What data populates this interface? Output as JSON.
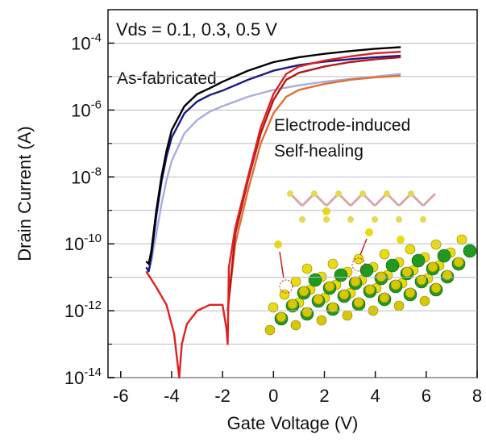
{
  "chart_data": {
    "type": "line",
    "title": "Vds = 0.1, 0.3, 0.5 V",
    "x_label": "Gate Voltage (V)",
    "y_label": "Drain Current (A)",
    "log_y": true,
    "grid": true,
    "xlim": [
      -6.5,
      8
    ],
    "xticks": [
      -6,
      -4,
      -2,
      0,
      2,
      4,
      6,
      8
    ],
    "ylim": [
      1e-14,
      0.001
    ],
    "yticks": [
      {
        "value": 1e-14,
        "label": "10^-14"
      },
      {
        "value": 1e-12,
        "label": "10^-12"
      },
      {
        "value": 1e-10,
        "label": "10^-10"
      },
      {
        "value": 1e-08,
        "label": "10^-8"
      },
      {
        "value": 1e-06,
        "label": "10^-6"
      },
      {
        "value": 0.0001,
        "label": "10^-4"
      }
    ],
    "minor_yticks": [
      1e-13,
      1e-11,
      1e-09,
      1e-07,
      1e-05
    ],
    "annotations": [
      {
        "text": "As-fabricated",
        "color": "#1f1f8f"
      },
      {
        "text": "Electrode-induced",
        "color": "#cc2020"
      },
      {
        "text": "Self-healing",
        "color": "#cc2020"
      }
    ],
    "series": [
      {
        "color": "#a8ace0",
        "x": [
          -5,
          -4.9,
          -4.8,
          -4.6,
          -4.4,
          -4.2,
          -4,
          -3.5,
          -3,
          -2.5,
          -2,
          -1,
          0,
          1,
          2,
          3,
          4,
          5
        ],
        "values": [
          2e-11,
          1.5e-11,
          3e-11,
          2e-10,
          1.5e-09,
          8e-09,
          3e-08,
          2e-07,
          5e-07,
          9e-07,
          1.3e-06,
          2.5e-06,
          4e-06,
          5.5e-06,
          7e-06,
          8.5e-06,
          1e-05,
          1.2e-05
        ]
      },
      {
        "color": "#1a1a80",
        "x": [
          -5,
          -4.9,
          -4.8,
          -4.6,
          -4.4,
          -4.2,
          -4,
          -3.5,
          -3,
          -2.5,
          -2,
          -1,
          0,
          1,
          2,
          3,
          4,
          5
        ],
        "values": [
          2e-11,
          1.5e-11,
          4e-11,
          7e-10,
          7e-09,
          4e-08,
          1.5e-07,
          8e-07,
          1.8e-06,
          2.8e-06,
          3.8e-06,
          8e-06,
          1.5e-05,
          2.2e-05,
          2.8e-05,
          3.3e-05,
          3.8e-05,
          4.2e-05
        ]
      },
      {
        "color": "#000000",
        "x": [
          -5,
          -4.9,
          -4.8,
          -4.6,
          -4.4,
          -4.2,
          -4,
          -3.5,
          -3,
          -2.5,
          -2,
          -1,
          0,
          1,
          2,
          3,
          4,
          5
        ],
        "values": [
          3e-11,
          2.5e-11,
          6e-11,
          1e-09,
          1e-08,
          6e-08,
          2.5e-07,
          1.3e-06,
          3e-06,
          4.5e-06,
          7e-06,
          1.5e-05,
          2.7e-05,
          3.8e-05,
          4.8e-05,
          5.8e-05,
          6.8e-05,
          7.6e-05
        ]
      },
      {
        "color": "#e07030",
        "x": [
          -1.8,
          -1.5,
          -1,
          -0.5,
          0,
          0.5,
          1,
          2,
          3,
          4,
          5
        ],
        "values": [
          1e-12,
          1e-10,
          4e-09,
          1e-07,
          8e-07,
          2.5e-06,
          4e-06,
          6e-06,
          8e-06,
          9.5e-06,
          1.05e-05
        ]
      },
      {
        "color": "#b01818",
        "x": [
          -1.8,
          -1.5,
          -1,
          -0.5,
          0,
          0.5,
          1,
          2,
          3,
          4,
          5
        ],
        "values": [
          1e-12,
          2e-10,
          8e-09,
          2e-07,
          2e-06,
          8e-06,
          1.3e-05,
          2e-05,
          2.7e-05,
          3.3e-05,
          3.8e-05
        ]
      },
      {
        "color": "#e02020",
        "x": [
          -5,
          -4.6,
          -4.2,
          -3.9,
          -3.75,
          -3.7,
          -3.6,
          -3.4,
          -3,
          -2.5,
          -2,
          -1.85,
          -1.8,
          -1.75,
          -1.5,
          -1,
          -0.5,
          0,
          0.5,
          1,
          2,
          3,
          4,
          5
        ],
        "values": [
          1.5e-11,
          5e-12,
          1.5e-12,
          2e-13,
          2e-14,
          1e-14,
          1e-13,
          4e-13,
          1e-12,
          1.5e-12,
          1.5e-12,
          3e-13,
          1e-13,
          2e-11,
          3e-10,
          1e-08,
          3e-07,
          3e-06,
          1.2e-05,
          2e-05,
          3e-05,
          4e-05,
          5e-05,
          5.5e-05
        ]
      }
    ]
  }
}
